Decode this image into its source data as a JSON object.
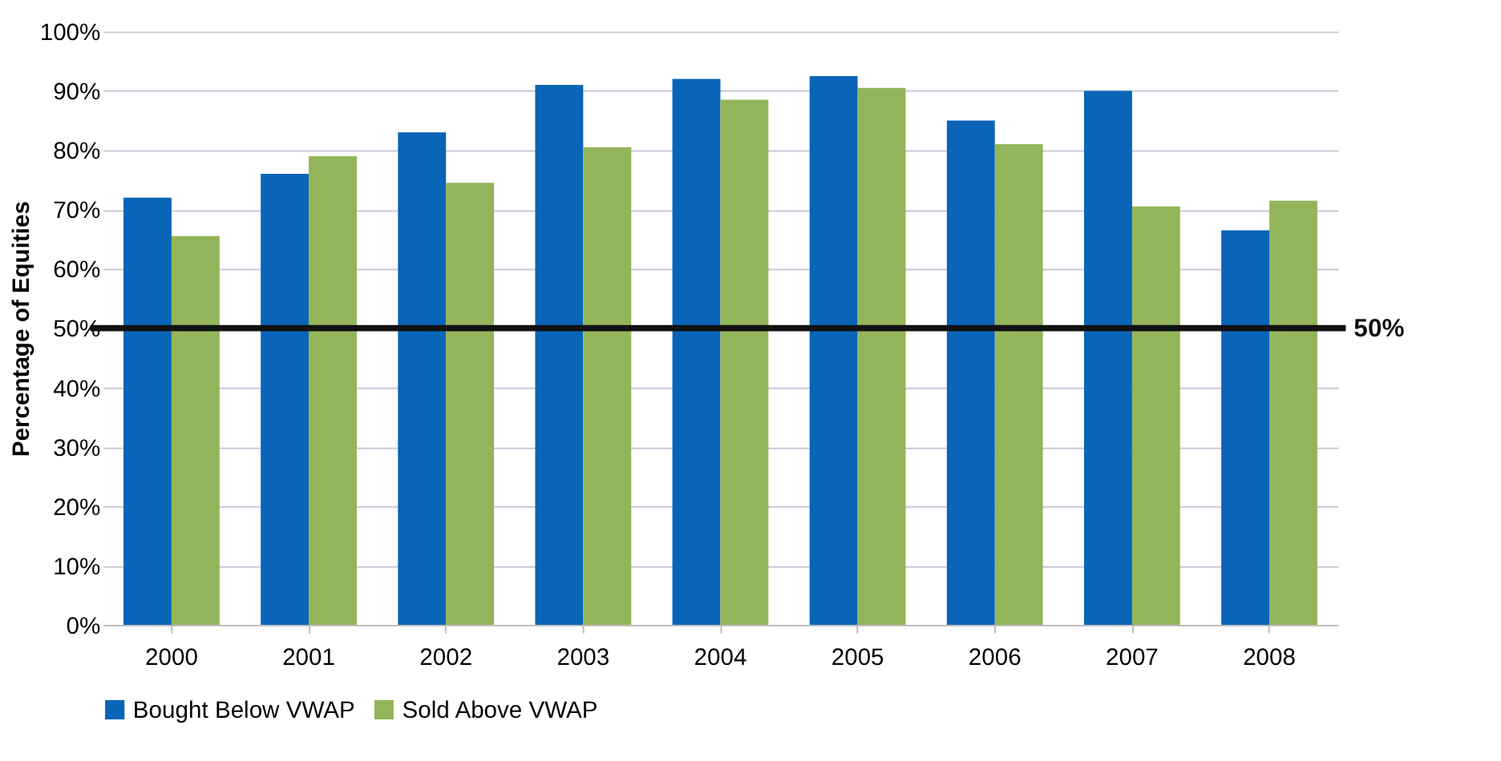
{
  "chart_data": {
    "type": "bar",
    "ylabel": "Percentage of Equities",
    "categories": [
      "2000",
      "2001",
      "2002",
      "2003",
      "2004",
      "2005",
      "2006",
      "2007",
      "2008"
    ],
    "series": [
      {
        "name": "Bought Below VWAP",
        "color": "#0a64b8",
        "values": [
          72,
          76,
          83,
          91,
          92,
          92.5,
          85,
          90,
          66.5
        ]
      },
      {
        "name": "Sold Above VWAP",
        "color": "#93b55a",
        "values": [
          65.5,
          79,
          74.5,
          80.5,
          88.5,
          90.5,
          81,
          70.5,
          71.5
        ]
      }
    ],
    "ylim": [
      0,
      100
    ],
    "yticks": [
      {
        "value": 0,
        "label": "0%"
      },
      {
        "value": 10,
        "label": "10%"
      },
      {
        "value": 20,
        "label": "20%"
      },
      {
        "value": 30,
        "label": "30%"
      },
      {
        "value": 40,
        "label": "40%"
      },
      {
        "value": 50,
        "label": "50%"
      },
      {
        "value": 60,
        "label": "60%"
      },
      {
        "value": 70,
        "label": "70%"
      },
      {
        "value": 80,
        "label": "80%"
      },
      {
        "value": 90,
        "label": "90%"
      },
      {
        "value": 100,
        "label": "100%"
      }
    ],
    "ref_lines": [
      {
        "axis": "y",
        "value": 50,
        "label": "50%",
        "color": "#111111"
      }
    ],
    "grid": "y",
    "legend": "bottom"
  }
}
